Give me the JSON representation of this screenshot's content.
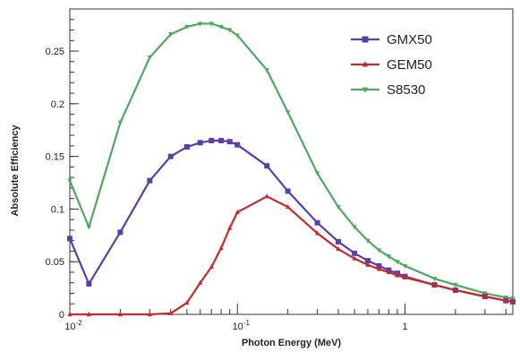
{
  "chart_data": {
    "type": "line",
    "title": "",
    "xlabel": "Photon Energy (MeV)",
    "ylabel": "Absolute Efficiency",
    "x_scale": "log",
    "xlim": [
      0.01,
      4.4
    ],
    "ylim": [
      0,
      0.29
    ],
    "grid": false,
    "legend_position": "top-right",
    "y_ticks": [
      "0",
      "0.05",
      "0.1",
      "0.15",
      "0.2",
      "0.25"
    ],
    "y_tick_values": [
      0,
      0.05,
      0.1,
      0.15,
      0.2,
      0.25
    ],
    "x_ticks": [
      {
        "value": 0.01,
        "base": "10",
        "exp": "-2"
      },
      {
        "value": 0.1,
        "base": "10",
        "exp": "-1"
      },
      {
        "value": 1,
        "base": "1",
        "exp": ""
      }
    ],
    "series": [
      {
        "name": "S8530",
        "color": "#4fa860",
        "marker": "triangle-down",
        "points": [
          [
            0.01,
            0.127
          ],
          [
            0.013,
            0.083
          ],
          [
            0.02,
            0.182
          ],
          [
            0.03,
            0.244
          ],
          [
            0.04,
            0.266
          ],
          [
            0.05,
            0.273
          ],
          [
            0.06,
            0.276
          ],
          [
            0.07,
            0.276
          ],
          [
            0.08,
            0.273
          ],
          [
            0.09,
            0.27
          ],
          [
            0.1,
            0.265
          ],
          [
            0.15,
            0.232
          ],
          [
            0.2,
            0.192
          ],
          [
            0.3,
            0.134
          ],
          [
            0.4,
            0.102
          ],
          [
            0.5,
            0.083
          ],
          [
            0.6,
            0.07
          ],
          [
            0.7,
            0.061
          ],
          [
            0.8,
            0.055
          ],
          [
            0.9,
            0.05
          ],
          [
            1.0,
            0.046
          ],
          [
            1.5,
            0.034
          ],
          [
            2.0,
            0.028
          ],
          [
            3.0,
            0.02
          ],
          [
            4.0,
            0.016
          ],
          [
            4.4,
            0.015
          ]
        ]
      },
      {
        "name": "GMX50",
        "color": "#5b3fa8",
        "marker": "square",
        "points": [
          [
            0.01,
            0.072
          ],
          [
            0.013,
            0.029
          ],
          [
            0.02,
            0.078
          ],
          [
            0.03,
            0.127
          ],
          [
            0.04,
            0.15
          ],
          [
            0.05,
            0.159
          ],
          [
            0.06,
            0.163
          ],
          [
            0.07,
            0.165
          ],
          [
            0.08,
            0.165
          ],
          [
            0.09,
            0.164
          ],
          [
            0.1,
            0.161
          ],
          [
            0.15,
            0.141
          ],
          [
            0.2,
            0.117
          ],
          [
            0.3,
            0.087
          ],
          [
            0.4,
            0.069
          ],
          [
            0.5,
            0.058
          ],
          [
            0.6,
            0.051
          ],
          [
            0.7,
            0.046
          ],
          [
            0.8,
            0.042
          ],
          [
            0.9,
            0.039
          ],
          [
            1.0,
            0.036
          ],
          [
            1.5,
            0.028
          ],
          [
            2.0,
            0.023
          ],
          [
            3.0,
            0.017
          ],
          [
            4.0,
            0.013
          ],
          [
            4.4,
            0.012
          ]
        ]
      },
      {
        "name": "GEM50",
        "color": "#c8282c",
        "marker": "triangle-up",
        "points": [
          [
            0.01,
            0.0
          ],
          [
            0.013,
            0.0
          ],
          [
            0.02,
            0.0
          ],
          [
            0.03,
            0.0
          ],
          [
            0.04,
            0.001
          ],
          [
            0.05,
            0.011
          ],
          [
            0.06,
            0.03
          ],
          [
            0.07,
            0.045
          ],
          [
            0.08,
            0.063
          ],
          [
            0.09,
            0.082
          ],
          [
            0.1,
            0.097
          ],
          [
            0.15,
            0.112
          ],
          [
            0.2,
            0.102
          ],
          [
            0.3,
            0.077
          ],
          [
            0.4,
            0.062
          ],
          [
            0.5,
            0.053
          ],
          [
            0.6,
            0.047
          ],
          [
            0.7,
            0.043
          ],
          [
            0.8,
            0.04
          ],
          [
            0.9,
            0.037
          ],
          [
            1.0,
            0.035
          ],
          [
            1.5,
            0.028
          ],
          [
            2.0,
            0.023
          ],
          [
            3.0,
            0.017
          ],
          [
            4.0,
            0.013
          ],
          [
            4.4,
            0.012
          ]
        ]
      }
    ],
    "legend_order": [
      "GMX50",
      "GEM50",
      "S8530"
    ]
  }
}
